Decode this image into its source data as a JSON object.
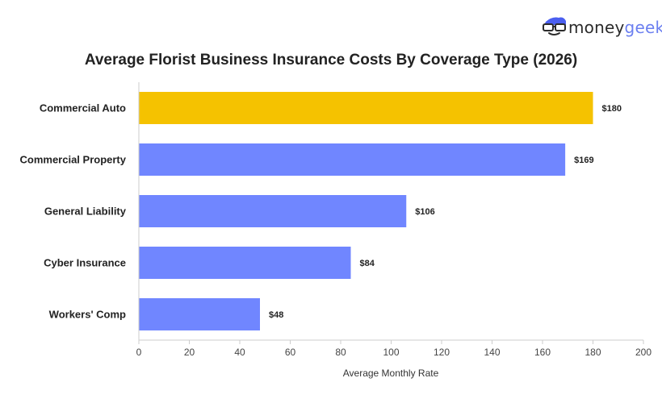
{
  "brand": {
    "name_part1": "money",
    "name_part2": "geek",
    "logo_icon": "nerd-face-icon",
    "color_dark": "#2b2b2b",
    "color_accent": "#6b7ff0"
  },
  "chart_data": {
    "type": "bar",
    "orientation": "horizontal",
    "title": "Average Florist Business Insurance Costs By Coverage Type (2026)",
    "xlabel": "Average Monthly Rate",
    "ylabel": "",
    "xlim": [
      0,
      200
    ],
    "xticks": [
      0,
      20,
      40,
      60,
      80,
      100,
      120,
      140,
      160,
      180,
      200
    ],
    "grid": false,
    "categories": [
      "Commercial Auto",
      "Commercial Property",
      "General Liability",
      "Cyber Insurance",
      "Workers' Comp"
    ],
    "values": [
      180,
      169,
      106,
      84,
      48
    ],
    "data_labels": [
      "$180",
      "$169",
      "$106",
      "$84",
      "$48"
    ],
    "bar_colors": [
      "#f5c200",
      "#7086ff",
      "#7086ff",
      "#7086ff",
      "#7086ff"
    ],
    "highlight_color": "#f5c200",
    "bar_color": "#7086ff",
    "axis_color": "#cccccc"
  }
}
